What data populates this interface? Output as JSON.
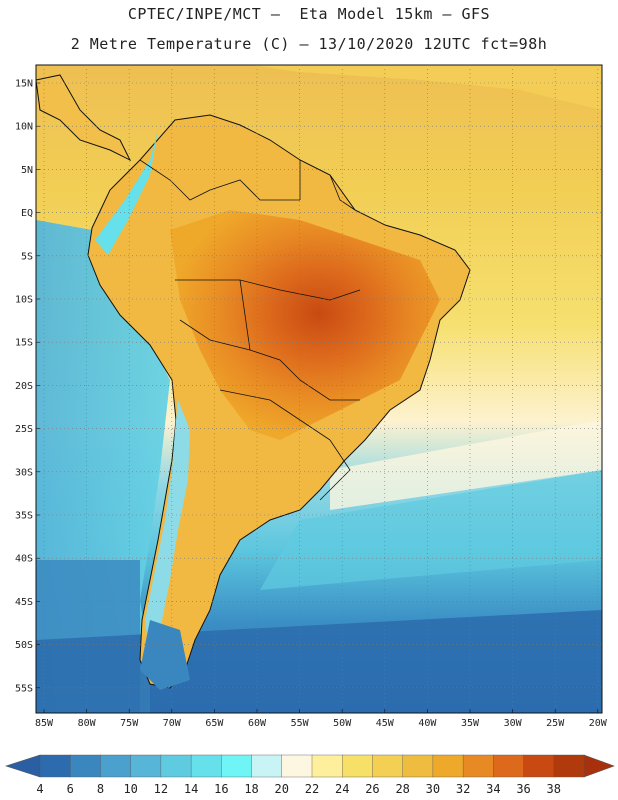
{
  "header": {
    "line1": "CPTEC/INPE/MCT –  Eta Model 15km – GFS",
    "line2": "2 Metre Temperature (C) – 13/10/2020 12UTC fct=98h"
  },
  "map": {
    "lat_labels": [
      "15N",
      "10N",
      "5N",
      "EQ",
      "5S",
      "10S",
      "15S",
      "20S",
      "25S",
      "30S",
      "35S",
      "40S",
      "45S",
      "50S",
      "55S"
    ],
    "lon_labels": [
      "85W",
      "80W",
      "75W",
      "70W",
      "65W",
      "60W",
      "55W",
      "50W",
      "45W",
      "40W",
      "35W",
      "30W",
      "25W",
      "20W"
    ]
  },
  "colorbar": {
    "labels": [
      "4",
      "6",
      "8",
      "10",
      "12",
      "14",
      "16",
      "18",
      "20",
      "22",
      "24",
      "26",
      "28",
      "30",
      "32",
      "34",
      "36",
      "38"
    ],
    "colors": [
      "#2c6cae",
      "#3a87bf",
      "#4aa1ce",
      "#57b6d8",
      "#5fcbe0",
      "#66e0ea",
      "#6ff5f5",
      "#c8f4f6",
      "#fdf6e0",
      "#fdef9c",
      "#f7e068",
      "#f3cf54",
      "#eebc3f",
      "#efa92a",
      "#e88a24",
      "#dd6a1c",
      "#c84a12",
      "#b03a0c"
    ],
    "low_color": "#2b5fa3",
    "high_color": "#a8300c"
  }
}
